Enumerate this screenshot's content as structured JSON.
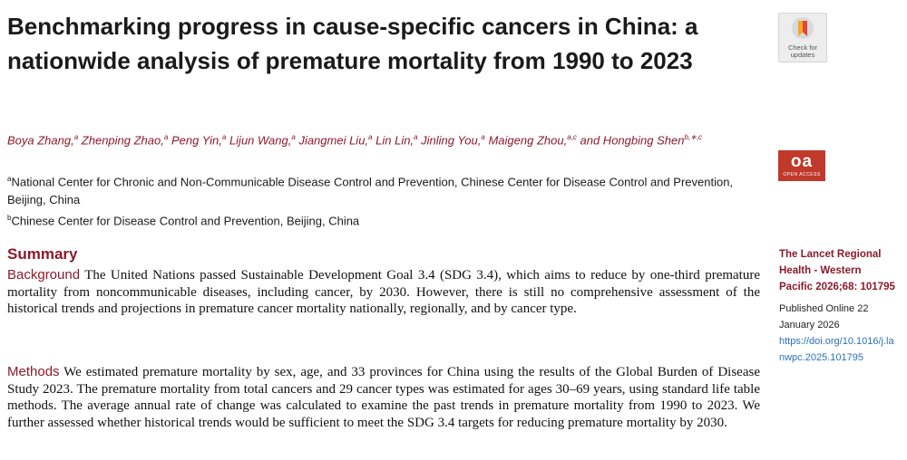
{
  "article": {
    "title": "Benchmarking progress in cause-specific cancers in China: a nationwide analysis of premature mortality from 1990 to 2023"
  },
  "badges": {
    "check_updates_label": "Check for updates",
    "oa_label": "oa",
    "oa_sublabel": "OPEN ACCESS"
  },
  "authors": [
    {
      "name": "Boya Zhang,",
      "sup": "a"
    },
    {
      "name": "Zhenping Zhao,",
      "sup": "a"
    },
    {
      "name": "Peng Yin,",
      "sup": "a"
    },
    {
      "name": "Lijun Wang,",
      "sup": "a"
    },
    {
      "name": "Jiangmei Liu,",
      "sup": "a"
    },
    {
      "name": "Lin Lin,",
      "sup": "a"
    },
    {
      "name": "Jinling You,",
      "sup": "a"
    },
    {
      "name": "Maigeng Zhou,",
      "sup": "a,c"
    },
    {
      "name": "and Hongbing Shen",
      "sup": "b,∗,c"
    }
  ],
  "affiliations": [
    {
      "sup": "a",
      "text": "National Center for Chronic and Non-Communicable Disease Control and Prevention, Chinese Center for Disease Control and Prevention, Beijing, China"
    },
    {
      "sup": "b",
      "text": "Chinese Center for Disease Control and Prevention, Beijing, China"
    }
  ],
  "summary": {
    "heading": "Summary",
    "background_label": "Background",
    "background_text": "The United Nations passed Sustainable Development Goal 3.4 (SDG 3.4), which aims to reduce by one-third premature mortality from noncommunicable diseases, including cancer, by 2030. However, there is still no comprehensive assessment of the historical trends and projections in premature cancer mortality nationally, regionally, and by cancer type.",
    "methods_label": "Methods",
    "methods_text": "We estimated premature mortality by sex, age, and 33 provinces for China using the results of the Global Burden of Disease Study 2023. The premature mortality from total cancers and 29 cancer types was estimated for ages 30–69 years, using standard life table methods. The average annual rate of change was calculated to examine the past trends in premature mortality from 1990 to 2023. We further assessed whether historical trends would be sufficient to meet the SDG 3.4 targets for reducing premature mortality by 2030."
  },
  "sidebar": {
    "journal": "The Lancet Regional Health - Western Pacific 2026;68: 101795",
    "published": "Published Online 22 January 2026",
    "doi": "https://doi.org/10.1016/j.lanwpc.2025.101795"
  },
  "colors": {
    "accent": "#8b1a2b",
    "link": "#2b72b5",
    "oa_badge": "#c0392b"
  }
}
